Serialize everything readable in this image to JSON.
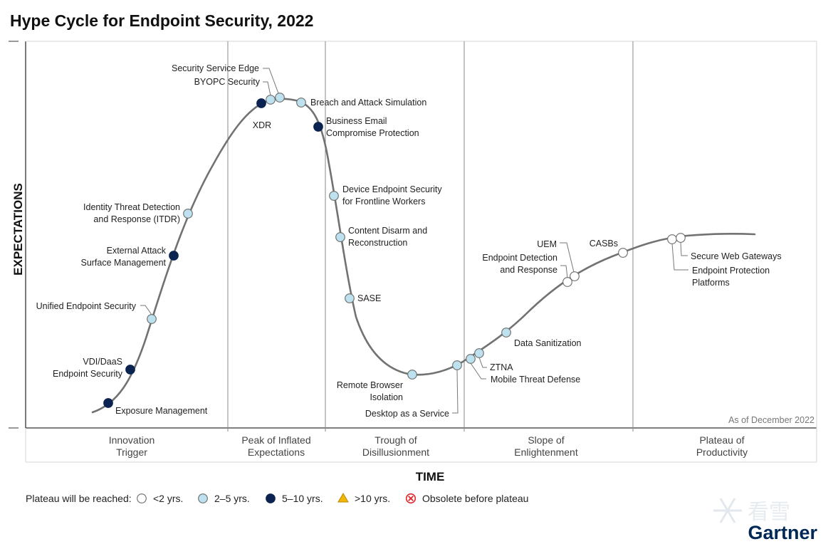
{
  "title": "Hype Cycle for Endpoint Security, 2022",
  "y_axis_label": "EXPECTATIONS",
  "x_axis_label": "TIME",
  "as_of": "As of December 2022",
  "brand": "Gartner",
  "watermark": "看雪",
  "phases": [
    {
      "label": [
        "Innovation",
        "Trigger"
      ]
    },
    {
      "label": [
        "Peak of Inflated",
        "Expectations"
      ]
    },
    {
      "label": [
        "Trough of",
        "Disillusionment"
      ]
    },
    {
      "label": [
        "Slope of",
        "Enlightenment"
      ]
    },
    {
      "label": [
        "Plateau of",
        "Productivity"
      ]
    }
  ],
  "legend": {
    "prefix": "Plateau will be reached:",
    "items": [
      {
        "key": "lt2",
        "label": "<2 yrs.",
        "color": "#ffffff"
      },
      {
        "key": "2to5",
        "label": "2–5 yrs.",
        "color": "#bde1ee"
      },
      {
        "key": "5to10",
        "label": "5–10 yrs.",
        "color": "#0b2350"
      },
      {
        "key": "gt10",
        "label": ">10 yrs.",
        "color": "#f2b705"
      },
      {
        "key": "obsolete",
        "label": "Obsolete before plateau",
        "color": "#e3242b"
      }
    ]
  },
  "chart_data": {
    "type": "scatter",
    "title": "Hype Cycle for Endpoint Security, 2022",
    "xlabel": "TIME",
    "ylabel": "EXPECTATIONS",
    "grid": false,
    "legend_position": "bottom",
    "series": [
      {
        "name": "<2 yrs.",
        "points": [
          "Endpoint Detection and Response",
          "UEM",
          "CASBs",
          "Endpoint Protection Platforms",
          "Secure Web Gateways"
        ]
      },
      {
        "name": "2–5 yrs.",
        "points": [
          "Unified Endpoint Security",
          "Identity Threat Detection and Response (ITDR)",
          "BYOPC Security",
          "Security Service Edge",
          "Breach and Attack Simulation",
          "Device Endpoint Security for Frontline Workers",
          "Content Disarm and Reconstruction",
          "SASE",
          "Remote Browser Isolation",
          "Desktop as a Service",
          "Mobile Threat Defense",
          "ZTNA",
          "Data Sanitization"
        ]
      },
      {
        "name": "5–10 yrs.",
        "points": [
          "Exposure Management",
          "VDI/DaaS Endpoint Security",
          "External Attack Surface Management",
          "XDR",
          "Business Email Compromise Protection"
        ]
      }
    ],
    "technologies": [
      {
        "name": "Exposure Management",
        "label": [
          "Exposure Management"
        ],
        "category": "5to10"
      },
      {
        "name": "VDI/DaaS Endpoint Security",
        "label": [
          "VDI/DaaS",
          "Endpoint Security"
        ],
        "category": "5to10"
      },
      {
        "name": "Unified Endpoint Security",
        "label": [
          "Unified Endpoint Security"
        ],
        "category": "2to5"
      },
      {
        "name": "External Attack Surface Management",
        "label": [
          "External Attack",
          "Surface Management"
        ],
        "category": "5to10"
      },
      {
        "name": "Identity Threat Detection and Response (ITDR)",
        "label": [
          "Identity Threat Detection",
          "and Response (ITDR)"
        ],
        "category": "2to5"
      },
      {
        "name": "XDR",
        "label": [
          "XDR"
        ],
        "category": "5to10"
      },
      {
        "name": "BYOPC Security",
        "label": [
          "BYOPC Security"
        ],
        "category": "2to5"
      },
      {
        "name": "Security Service Edge",
        "label": [
          "Security Service Edge"
        ],
        "category": "2to5"
      },
      {
        "name": "Breach and Attack Simulation",
        "label": [
          "Breach and Attack Simulation"
        ],
        "category": "2to5"
      },
      {
        "name": "Business Email Compromise Protection",
        "label": [
          "Business Email",
          "Compromise Protection"
        ],
        "category": "5to10"
      },
      {
        "name": "Device Endpoint Security for Frontline Workers",
        "label": [
          "Device Endpoint Security",
          "for Frontline Workers"
        ],
        "category": "2to5"
      },
      {
        "name": "Content Disarm and Reconstruction",
        "label": [
          "Content Disarm and",
          "Reconstruction"
        ],
        "category": "2to5"
      },
      {
        "name": "SASE",
        "label": [
          "SASE"
        ],
        "category": "2to5"
      },
      {
        "name": "Remote Browser Isolation",
        "label": [
          "Remote Browser",
          "Isolation"
        ],
        "category": "2to5"
      },
      {
        "name": "Desktop as a Service",
        "label": [
          "Desktop as a Service"
        ],
        "category": "2to5"
      },
      {
        "name": "Mobile Threat Defense",
        "label": [
          "Mobile Threat Defense"
        ],
        "category": "2to5"
      },
      {
        "name": "ZTNA",
        "label": [
          "ZTNA"
        ],
        "category": "2to5"
      },
      {
        "name": "Data Sanitization",
        "label": [
          "Data Sanitization"
        ],
        "category": "2to5"
      },
      {
        "name": "Endpoint Detection and Response",
        "label": [
          "Endpoint Detection",
          "and Response"
        ],
        "category": "lt2"
      },
      {
        "name": "UEM",
        "label": [
          "UEM"
        ],
        "category": "lt2"
      },
      {
        "name": "CASBs",
        "label": [
          "CASBs"
        ],
        "category": "lt2"
      },
      {
        "name": "Endpoint Protection Platforms",
        "label": [
          "Endpoint Protection",
          "Platforms"
        ],
        "category": "lt2"
      },
      {
        "name": "Secure Web Gateways",
        "label": [
          "Secure Web Gateways"
        ],
        "category": "lt2"
      }
    ]
  }
}
